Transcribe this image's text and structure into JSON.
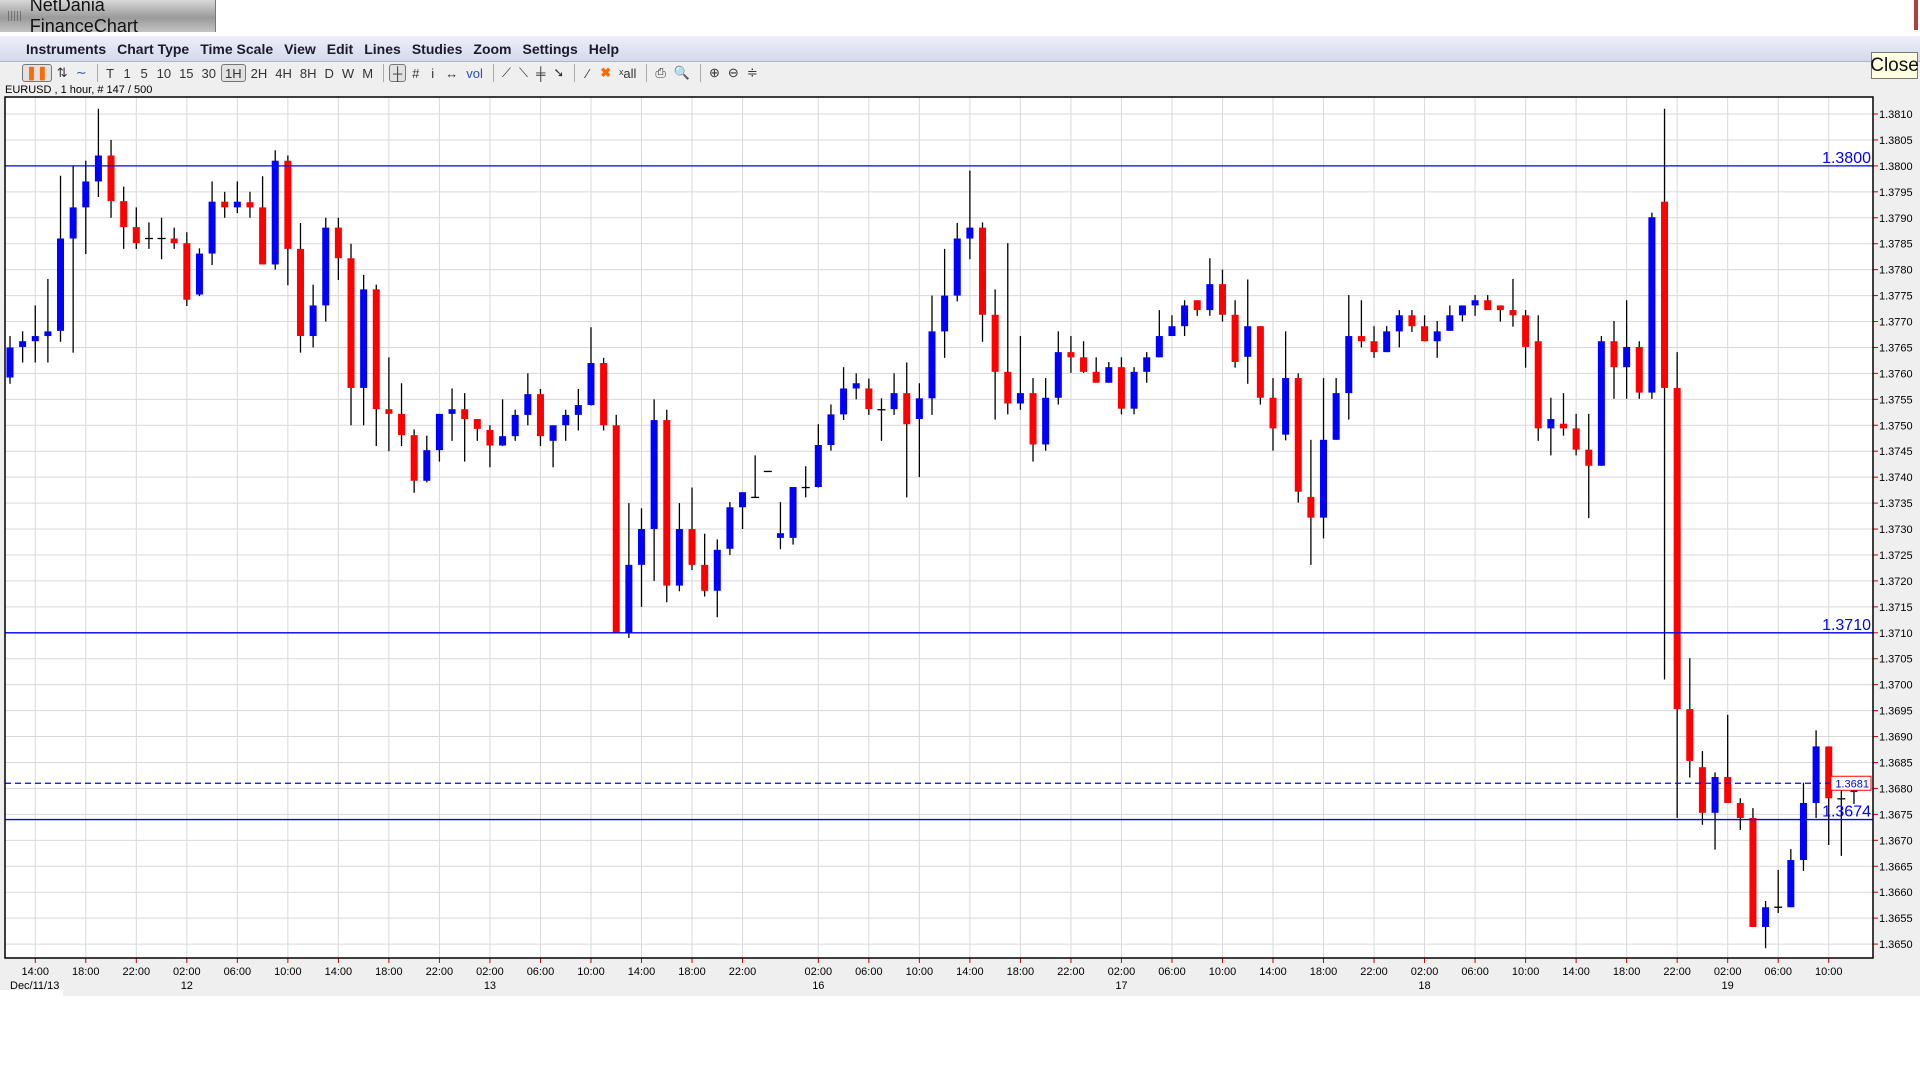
{
  "app": {
    "title": "NetDania FinanceChart",
    "close_label": "Close"
  },
  "menu": [
    "Instruments",
    "Chart Type",
    "Time Scale",
    "View",
    "Edit",
    "Lines",
    "Studies",
    "Zoom",
    "Settings",
    "Help"
  ],
  "toolbar": [
    {
      "label": "❚❚",
      "name": "candlestick-chart-button",
      "selected": true,
      "style": "orange"
    },
    {
      "label": "⇅",
      "name": "bar-chart-button"
    },
    {
      "label": "∼",
      "name": "line-chart-button",
      "style": "blue"
    },
    {
      "sep": true
    },
    {
      "label": "T",
      "name": "timescale-tick-button"
    },
    {
      "label": "1",
      "name": "timescale-1-button"
    },
    {
      "label": "5",
      "name": "timescale-5-button"
    },
    {
      "label": "10",
      "name": "timescale-10-button"
    },
    {
      "label": "15",
      "name": "timescale-15-button"
    },
    {
      "label": "30",
      "name": "timescale-30-button"
    },
    {
      "label": "1H",
      "name": "timescale-1h-button",
      "selected": true
    },
    {
      "label": "2H",
      "name": "timescale-2h-button"
    },
    {
      "label": "4H",
      "name": "timescale-4h-button"
    },
    {
      "label": "8H",
      "name": "timescale-8h-button"
    },
    {
      "label": "D",
      "name": "timescale-d-button"
    },
    {
      "label": "W",
      "name": "timescale-w-button"
    },
    {
      "label": "M",
      "name": "timescale-m-button"
    },
    {
      "sep": true
    },
    {
      "label": "┼",
      "name": "crosshair-button",
      "selected": true
    },
    {
      "label": "#",
      "name": "grid-button"
    },
    {
      "label": "i",
      "name": "info-button"
    },
    {
      "label": "↔",
      "name": "scroll-button"
    },
    {
      "label": "vol",
      "name": "volume-button",
      "style": "blue"
    },
    {
      "sep": true
    },
    {
      "label": "⟋",
      "name": "trendline-button"
    },
    {
      "label": "⟍",
      "name": "ray-button"
    },
    {
      "label": "╪",
      "name": "channel-button"
    },
    {
      "label": "➘",
      "name": "arrow-button"
    },
    {
      "sep": true
    },
    {
      "label": "⁄",
      "name": "draw-line-button"
    },
    {
      "label": "✖",
      "name": "delete-button",
      "style": "orange"
    },
    {
      "label": "ˣall",
      "name": "delete-all-button"
    },
    {
      "sep": true
    },
    {
      "label": "⎙",
      "name": "print-button"
    },
    {
      "label": "🔍",
      "name": "print-preview-button"
    },
    {
      "sep": true
    },
    {
      "label": "⊕",
      "name": "zoom-in-button"
    },
    {
      "label": "⊖",
      "name": "zoom-out-button"
    },
    {
      "label": "≑",
      "name": "fit-button"
    }
  ],
  "info_label": "EURUSD , 1 hour, # 147 / 500",
  "colors": {
    "up": "#0000ff",
    "down": "#ff0000",
    "wick": "#000000",
    "grid": "#d9d9d9",
    "level": "#0000ff",
    "last_box": "#ff0000"
  },
  "chart_data": {
    "type": "candlestick",
    "symbol": "EURUSD",
    "interval": "1 hour",
    "ylim": [
      1.3648,
      1.3818
    ],
    "y_ticks": [
      "1.3650",
      "1.3655",
      "1.3660",
      "1.3665",
      "1.3670",
      "1.3675",
      "1.3680",
      "1.3685",
      "1.3690",
      "1.3695",
      "1.3700",
      "1.3705",
      "1.3710",
      "1.3715",
      "1.3720",
      "1.3725",
      "1.3730",
      "1.3735",
      "1.3740",
      "1.3745",
      "1.3750",
      "1.3755",
      "1.3760",
      "1.3765",
      "1.3770",
      "1.3775",
      "1.3780",
      "1.3785",
      "1.3790",
      "1.3795",
      "1.3800",
      "1.3805",
      "1.3810"
    ],
    "grid": true,
    "x_ticks": [
      {
        "bar": 3,
        "label": "14:00",
        "date": "Dec/11/13"
      },
      {
        "bar": 7,
        "label": "18:00"
      },
      {
        "bar": 11,
        "label": "22:00"
      },
      {
        "bar": 15,
        "label": "02:00",
        "date": "12"
      },
      {
        "bar": 19,
        "label": "06:00"
      },
      {
        "bar": 23,
        "label": "10:00"
      },
      {
        "bar": 27,
        "label": "14:00"
      },
      {
        "bar": 31,
        "label": "18:00"
      },
      {
        "bar": 35,
        "label": "22:00"
      },
      {
        "bar": 39,
        "label": "02:00",
        "date": "13"
      },
      {
        "bar": 43,
        "label": "06:00"
      },
      {
        "bar": 47,
        "label": "10:00"
      },
      {
        "bar": 51,
        "label": "14:00"
      },
      {
        "bar": 55,
        "label": "18:00"
      },
      {
        "bar": 59,
        "label": "22:00"
      },
      {
        "bar": 65,
        "label": "02:00",
        "date": "16"
      },
      {
        "bar": 69,
        "label": "06:00"
      },
      {
        "bar": 73,
        "label": "10:00"
      },
      {
        "bar": 77,
        "label": "14:00"
      },
      {
        "bar": 81,
        "label": "18:00"
      },
      {
        "bar": 85,
        "label": "22:00"
      },
      {
        "bar": 89,
        "label": "02:00",
        "date": "17"
      },
      {
        "bar": 93,
        "label": "06:00"
      },
      {
        "bar": 97,
        "label": "10:00"
      },
      {
        "bar": 101,
        "label": "14:00"
      },
      {
        "bar": 105,
        "label": "18:00"
      },
      {
        "bar": 109,
        "label": "22:00"
      },
      {
        "bar": 113,
        "label": "02:00",
        "date": "18"
      },
      {
        "bar": 117,
        "label": "06:00"
      },
      {
        "bar": 121,
        "label": "10:00"
      },
      {
        "bar": 125,
        "label": "14:00"
      },
      {
        "bar": 129,
        "label": "18:00"
      },
      {
        "bar": 133,
        "label": "22:00"
      },
      {
        "bar": 137,
        "label": "02:00",
        "date": "19"
      },
      {
        "bar": 141,
        "label": "06:00"
      },
      {
        "bar": 145,
        "label": "10:00"
      }
    ],
    "levels": [
      {
        "price": 1.38,
        "label": "1.3800"
      },
      {
        "price": 1.371,
        "label": "1.3710"
      },
      {
        "price": 1.3674,
        "label": "1.3674"
      }
    ],
    "last_price": {
      "price": 1.3681,
      "label": "1.3681"
    },
    "ohlc_columns": [
      "open",
      "high",
      "low",
      "close"
    ],
    "ohlc": [
      [
        1.37592,
        1.37672,
        1.3758,
        1.3765
      ],
      [
        1.37651,
        1.37681,
        1.37621,
        1.37662
      ],
      [
        1.37662,
        1.37731,
        1.37621,
        1.37672
      ],
      [
        1.37672,
        1.37782,
        1.37621,
        1.37681
      ],
      [
        1.37682,
        1.37981,
        1.37661,
        1.3786
      ],
      [
        1.3786,
        1.38,
        1.3764,
        1.3792
      ],
      [
        1.3792,
        1.3801,
        1.3783,
        1.3797
      ],
      [
        1.3797,
        1.3811,
        1.3794,
        1.3802
      ],
      [
        1.3802,
        1.3805,
        1.379,
        1.37932
      ],
      [
        1.37932,
        1.3796,
        1.3784,
        1.37882
      ],
      [
        1.37882,
        1.3792,
        1.3784,
        1.37851
      ],
      [
        1.3786,
        1.37891,
        1.3784,
        1.3786
      ],
      [
        1.3786,
        1.379,
        1.3782,
        1.3786
      ],
      [
        1.3786,
        1.37881,
        1.3784,
        1.37851
      ],
      [
        1.37851,
        1.37872,
        1.3773,
        1.37742
      ],
      [
        1.37752,
        1.37841,
        1.37749,
        1.37831
      ],
      [
        1.37831,
        1.3797,
        1.37809,
        1.37931
      ],
      [
        1.37931,
        1.3795,
        1.379,
        1.3792
      ],
      [
        1.3792,
        1.3797,
        1.37909,
        1.37931
      ],
      [
        1.3793,
        1.3795,
        1.379,
        1.3792
      ],
      [
        1.3792,
        1.3798,
        1.3781,
        1.3781
      ],
      [
        1.3781,
        1.3803,
        1.378,
        1.3801
      ],
      [
        1.3801,
        1.3802,
        1.3777,
        1.3784
      ],
      [
        1.3784,
        1.3789,
        1.3764,
        1.37672
      ],
      [
        1.37672,
        1.37771,
        1.3765,
        1.37731
      ],
      [
        1.37731,
        1.379,
        1.377,
        1.37881
      ],
      [
        1.37881,
        1.379,
        1.3778,
        1.37822
      ],
      [
        1.37822,
        1.3785,
        1.375,
        1.37572
      ],
      [
        1.37572,
        1.3779,
        1.375,
        1.37762
      ],
      [
        1.37762,
        1.37771,
        1.3746,
        1.37531
      ],
      [
        1.37531,
        1.37631,
        1.3745,
        1.37522
      ],
      [
        1.37522,
        1.37581,
        1.3746,
        1.37481
      ],
      [
        1.37481,
        1.37492,
        1.3737,
        1.37393
      ],
      [
        1.37393,
        1.3748,
        1.3739,
        1.37452
      ],
      [
        1.37452,
        1.37522,
        1.3743,
        1.37522
      ],
      [
        1.37522,
        1.37571,
        1.3747,
        1.37531
      ],
      [
        1.37531,
        1.37562,
        1.3743,
        1.37512
      ],
      [
        1.37512,
        1.37512,
        1.3747,
        1.37493
      ],
      [
        1.37491,
        1.375,
        1.37419,
        1.37461
      ],
      [
        1.37461,
        1.3755,
        1.3746,
        1.37479
      ],
      [
        1.37479,
        1.3753,
        1.3747,
        1.3752
      ],
      [
        1.3752,
        1.376,
        1.375,
        1.3756
      ],
      [
        1.3756,
        1.3757,
        1.3746,
        1.37479
      ],
      [
        1.3747,
        1.375,
        1.37419,
        1.375
      ],
      [
        1.375,
        1.3753,
        1.3747,
        1.3752
      ],
      [
        1.3752,
        1.3757,
        1.3749,
        1.37539
      ],
      [
        1.37539,
        1.37689,
        1.37538,
        1.3762
      ],
      [
        1.3762,
        1.3763,
        1.3749,
        1.375
      ],
      [
        1.375,
        1.3752,
        1.371,
        1.371
      ],
      [
        1.371,
        1.3735,
        1.3709,
        1.37231
      ],
      [
        1.37231,
        1.3734,
        1.3715,
        1.373
      ],
      [
        1.373,
        1.3755,
        1.372,
        1.3751
      ],
      [
        1.3751,
        1.3753,
        1.37159,
        1.37191
      ],
      [
        1.37191,
        1.3735,
        1.3718,
        1.373
      ],
      [
        1.373,
        1.3738,
        1.37221,
        1.37231
      ],
      [
        1.37231,
        1.37291,
        1.3717,
        1.37181
      ],
      [
        1.37181,
        1.3728,
        1.3713,
        1.3726
      ],
      [
        1.37262,
        1.37352,
        1.3725,
        1.37342
      ],
      [
        1.37342,
        1.37371,
        1.373,
        1.37371
      ],
      [
        1.37361,
        1.37442,
        1.37361,
        1.37361
      ],
      [
        1.37411,
        1.37411,
        1.37411,
        1.37411
      ],
      [
        1.37283,
        1.37352,
        1.37261,
        1.37292
      ],
      [
        1.37283,
        1.37381,
        1.3727,
        1.37381
      ],
      [
        1.3738,
        1.37421,
        1.37361,
        1.3738
      ],
      [
        1.37381,
        1.37502,
        1.3738,
        1.37462
      ],
      [
        1.37462,
        1.3754,
        1.37451,
        1.37521
      ],
      [
        1.37521,
        1.37612,
        1.3751,
        1.37571
      ],
      [
        1.37571,
        1.376,
        1.3755,
        1.37581
      ],
      [
        1.37571,
        1.3759,
        1.3752,
        1.37531
      ],
      [
        1.3753,
        1.37552,
        1.3747,
        1.3753
      ],
      [
        1.37531,
        1.376,
        1.3752,
        1.37562
      ],
      [
        1.37562,
        1.37621,
        1.37361,
        1.37502
      ],
      [
        1.37512,
        1.37581,
        1.374,
        1.37552
      ],
      [
        1.37552,
        1.3775,
        1.3752,
        1.37681
      ],
      [
        1.37681,
        1.3784,
        1.3763,
        1.3775
      ],
      [
        1.3775,
        1.3789,
        1.37739,
        1.3786
      ],
      [
        1.3786,
        1.37991,
        1.3782,
        1.37881
      ],
      [
        1.37881,
        1.37891,
        1.37661,
        1.37713
      ],
      [
        1.37713,
        1.37762,
        1.37511,
        1.37603
      ],
      [
        1.37603,
        1.37851,
        1.37521,
        1.37542
      ],
      [
        1.37542,
        1.37672,
        1.3753,
        1.37562
      ],
      [
        1.37562,
        1.37591,
        1.3743,
        1.37463
      ],
      [
        1.37463,
        1.37591,
        1.37451,
        1.37553
      ],
      [
        1.37553,
        1.37681,
        1.3754,
        1.37641
      ],
      [
        1.37641,
        1.37672,
        1.37601,
        1.37631
      ],
      [
        1.37631,
        1.37662,
        1.37601,
        1.37603
      ],
      [
        1.37603,
        1.37631,
        1.37582,
        1.37582
      ],
      [
        1.37582,
        1.37622,
        1.37582,
        1.37612
      ],
      [
        1.37612,
        1.37631,
        1.37521,
        1.37532
      ],
      [
        1.37532,
        1.37612,
        1.37521,
        1.37603
      ],
      [
        1.37603,
        1.37641,
        1.37582,
        1.37631
      ],
      [
        1.37631,
        1.37722,
        1.37631,
        1.37672
      ],
      [
        1.37672,
        1.37712,
        1.37672,
        1.37691
      ],
      [
        1.37691,
        1.37741,
        1.37672,
        1.37731
      ],
      [
        1.37741,
        1.37741,
        1.37711,
        1.37722
      ],
      [
        1.37722,
        1.37822,
        1.37711,
        1.37772
      ],
      [
        1.37772,
        1.378,
        1.377,
        1.37713
      ],
      [
        1.37713,
        1.37741,
        1.37611,
        1.37622
      ],
      [
        1.37632,
        1.37781,
        1.3758,
        1.37691
      ],
      [
        1.37691,
        1.37691,
        1.3754,
        1.37553
      ],
      [
        1.37553,
        1.37591,
        1.37451,
        1.37494
      ],
      [
        1.37482,
        1.37681,
        1.37471,
        1.37591
      ],
      [
        1.37591,
        1.376,
        1.37351,
        1.37372
      ],
      [
        1.37362,
        1.37472,
        1.37231,
        1.37322
      ],
      [
        1.37322,
        1.37591,
        1.37282,
        1.37472
      ],
      [
        1.37472,
        1.37591,
        1.37472,
        1.37562
      ],
      [
        1.37562,
        1.37751,
        1.37511,
        1.37672
      ],
      [
        1.37672,
        1.37741,
        1.3765,
        1.37662
      ],
      [
        1.37662,
        1.37691,
        1.3763,
        1.37641
      ],
      [
        1.37641,
        1.37691,
        1.37641,
        1.37681
      ],
      [
        1.37681,
        1.37722,
        1.3765,
        1.37712
      ],
      [
        1.37712,
        1.37722,
        1.3768,
        1.37691
      ],
      [
        1.37691,
        1.37712,
        1.37662,
        1.37662
      ],
      [
        1.37662,
        1.37701,
        1.3763,
        1.37681
      ],
      [
        1.37682,
        1.37731,
        1.37682,
        1.37712
      ],
      [
        1.37712,
        1.37731,
        1.377,
        1.37731
      ],
      [
        1.37731,
        1.37751,
        1.37711,
        1.37741
      ],
      [
        1.37741,
        1.37751,
        1.37722,
        1.37722
      ],
      [
        1.37731,
        1.37731,
        1.377,
        1.37722
      ],
      [
        1.37722,
        1.37782,
        1.3769,
        1.37712
      ],
      [
        1.37712,
        1.37722,
        1.37611,
        1.37651
      ],
      [
        1.37662,
        1.37712,
        1.3747,
        1.37494
      ],
      [
        1.37494,
        1.37553,
        1.37442,
        1.37512
      ],
      [
        1.37503,
        1.37562,
        1.3748,
        1.37494
      ],
      [
        1.37494,
        1.37522,
        1.37442,
        1.37453
      ],
      [
        1.37453,
        1.37522,
        1.37321,
        1.37422
      ],
      [
        1.37422,
        1.37672,
        1.37422,
        1.37662
      ],
      [
        1.37662,
        1.37701,
        1.37551,
        1.37612
      ],
      [
        1.37612,
        1.37741,
        1.37551,
        1.37651
      ],
      [
        1.37651,
        1.37662,
        1.37551,
        1.37563
      ],
      [
        1.37563,
        1.3791,
        1.37551,
        1.37901
      ],
      [
        1.37931,
        1.3811,
        1.3701,
        1.37572
      ],
      [
        1.37572,
        1.37641,
        1.36743,
        1.36953
      ],
      [
        1.36953,
        1.37051,
        1.36821,
        1.36853
      ],
      [
        1.36841,
        1.36872,
        1.3673,
        1.36753
      ],
      [
        1.36753,
        1.36831,
        1.36682,
        1.36822
      ],
      [
        1.36822,
        1.36942,
        1.36772,
        1.36772
      ],
      [
        1.36772,
        1.36781,
        1.3672,
        1.36743
      ],
      [
        1.36743,
        1.36762,
        1.36533,
        1.36533
      ],
      [
        1.36533,
        1.36583,
        1.36492,
        1.36571
      ],
      [
        1.36571,
        1.36643,
        1.3656,
        1.36571
      ],
      [
        1.36571,
        1.36683,
        1.36571,
        1.36662
      ],
      [
        1.36662,
        1.36811,
        1.36641,
        1.36772
      ],
      [
        1.36772,
        1.36912,
        1.36743,
        1.36881
      ],
      [
        1.36881,
        1.36881,
        1.36691,
        1.36781
      ],
      [
        1.3678,
        1.36822,
        1.3667,
        1.3678
      ],
      [
        1.36793,
        1.36822,
        1.3677,
        1.36811
      ]
    ]
  }
}
